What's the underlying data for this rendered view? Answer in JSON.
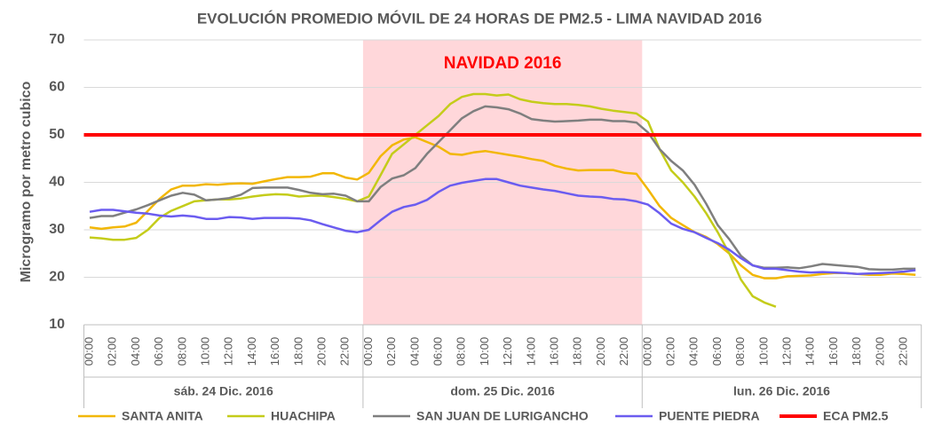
{
  "chart_data": {
    "type": "line",
    "title": "EVOLUCIÓN PROMEDIO MÓVIL DE 24 HORAS DE PM2.5 - LIMA NAVIDAD 2016",
    "y_label": "Microgramo por metro cubico",
    "annotation": "NAVIDAD 2016",
    "annotation_color": "#ff0000",
    "shaded_group": 1,
    "shade_color": "#ffd7da",
    "groups": [
      "sáb. 24 Dic. 2016",
      "dom. 25 Dic. 2016",
      "lun. 26 Dic. 2016"
    ],
    "categories": [
      "00:00",
      null,
      "02:00",
      null,
      "04:00",
      null,
      "06:00",
      null,
      "08:00",
      null,
      "10:00",
      null,
      "12:00",
      null,
      "14:00",
      null,
      "16:00",
      null,
      "18:00",
      null,
      "20:00",
      null,
      "22:00",
      null,
      "00:00",
      null,
      "02:00",
      null,
      "04:00",
      null,
      "06:00",
      null,
      "08:00",
      null,
      "10:00",
      null,
      "12:00",
      null,
      "14:00",
      null,
      "16:00",
      null,
      "18:00",
      null,
      "20:00",
      null,
      "22:00",
      null,
      "00:00",
      null,
      "02:00",
      null,
      "04:00",
      null,
      "06:00",
      null,
      "08:00",
      null,
      "10:00",
      null,
      "12:00",
      null,
      "14:00",
      null,
      "16:00",
      null,
      "18:00",
      null,
      "20:00",
      null,
      "22:00",
      null
    ],
    "ylim": [
      10,
      70
    ],
    "yticks": [
      10,
      20,
      30,
      40,
      50,
      60,
      70
    ],
    "grid": true,
    "series": [
      {
        "name": "SANTA ANITA",
        "color": "#f2b705",
        "values": [
          30.5,
          30.2,
          30.5,
          30.7,
          31.5,
          34,
          36.5,
          38.5,
          39.3,
          39.3,
          39.6,
          39.5,
          39.7,
          39.8,
          39.7,
          40.2,
          40.7,
          41.1,
          41.1,
          41.2,
          41.9,
          41.9,
          41.0,
          40.6,
          42,
          45.5,
          47.8,
          49,
          49.5,
          48.5,
          47.5,
          46,
          45.8,
          46.3,
          46.6,
          46.2,
          45.8,
          45.4,
          44.9,
          44.5,
          43.5,
          42.9,
          42.5,
          42.6,
          42.6,
          42.6,
          42,
          41.8,
          38.5,
          35,
          32.5,
          31,
          29.5,
          28.5,
          27,
          25,
          22.5,
          20.5,
          19.8,
          19.8,
          20.2,
          20.3,
          20.4,
          20.7,
          20.9,
          20.9,
          20.7,
          20.5,
          20.5,
          20.8,
          20.7,
          20.5
        ]
      },
      {
        "name": "HUACHIPA",
        "color": "#c4cc1a",
        "values": [
          28.4,
          28.2,
          27.9,
          27.9,
          28.3,
          30,
          32.5,
          34,
          35,
          36,
          36.2,
          36.4,
          36.4,
          36.6,
          37,
          37.3,
          37.5,
          37.4,
          37,
          37.2,
          37.2,
          36.9,
          36.5,
          36.0,
          37,
          41.5,
          46,
          48,
          50,
          52,
          54,
          56.5,
          58,
          58.6,
          58.6,
          58.3,
          58.5,
          57.5,
          57,
          56.7,
          56.5,
          56.5,
          56.3,
          56,
          55.5,
          55.1,
          54.8,
          54.5,
          52.8,
          47,
          42.5,
          40,
          37,
          33.5,
          29.5,
          25,
          19.5,
          16,
          14.7,
          13.8,
          null,
          null,
          null,
          null,
          null,
          null,
          null,
          null,
          null,
          null,
          null,
          null
        ]
      },
      {
        "name": "SAN JUAN DE LURIGANCHO",
        "color": "#7f7f7f",
        "values": [
          32.5,
          32.9,
          32.9,
          33.6,
          34.3,
          35.2,
          36.2,
          37.2,
          37.8,
          37.4,
          36.2,
          36.4,
          36.7,
          37.4,
          38.8,
          38.9,
          38.9,
          38.9,
          38.4,
          37.8,
          37.5,
          37.6,
          37.2,
          36.0,
          36,
          39,
          40.8,
          41.5,
          43,
          46,
          48.5,
          51,
          53.5,
          55,
          56,
          55.8,
          55.4,
          54.5,
          53.3,
          53,
          52.8,
          52.9,
          53,
          53.2,
          53.2,
          52.9,
          52.9,
          52.6,
          50.5,
          47,
          44.5,
          42.5,
          39.5,
          35.5,
          31,
          28,
          24.5,
          22.5,
          22,
          22,
          22.1,
          21.9,
          22.3,
          22.8,
          22.6,
          22.4,
          22.2,
          21.7,
          21.6,
          21.6,
          21.8,
          21.8
        ]
      },
      {
        "name": "PUENTE PIEDRA",
        "color": "#6b5cf0",
        "values": [
          33.8,
          34.2,
          34.2,
          33.9,
          33.6,
          33.4,
          33.0,
          32.8,
          33.0,
          32.8,
          32.3,
          32.3,
          32.7,
          32.6,
          32.3,
          32.5,
          32.5,
          32.5,
          32.4,
          32.0,
          31.2,
          30.5,
          29.8,
          29.5,
          30,
          32,
          33.8,
          34.8,
          35.3,
          36.3,
          38,
          39.3,
          39.9,
          40.3,
          40.7,
          40.7,
          40,
          39.3,
          38.9,
          38.5,
          38.2,
          37.7,
          37.2,
          37.0,
          36.9,
          36.5,
          36.4,
          36.0,
          35.3,
          33.5,
          31.3,
          30.2,
          29.5,
          28.3,
          27.2,
          25.8,
          24,
          22.5,
          21.8,
          21.8,
          21.5,
          21.2,
          21.0,
          21.1,
          21.0,
          20.9,
          20.7,
          20.8,
          20.9,
          21.0,
          21.2,
          21.5
        ]
      }
    ],
    "reference_line": {
      "name": "ECA PM2.5",
      "value": 50,
      "color": "#ff0000"
    }
  }
}
